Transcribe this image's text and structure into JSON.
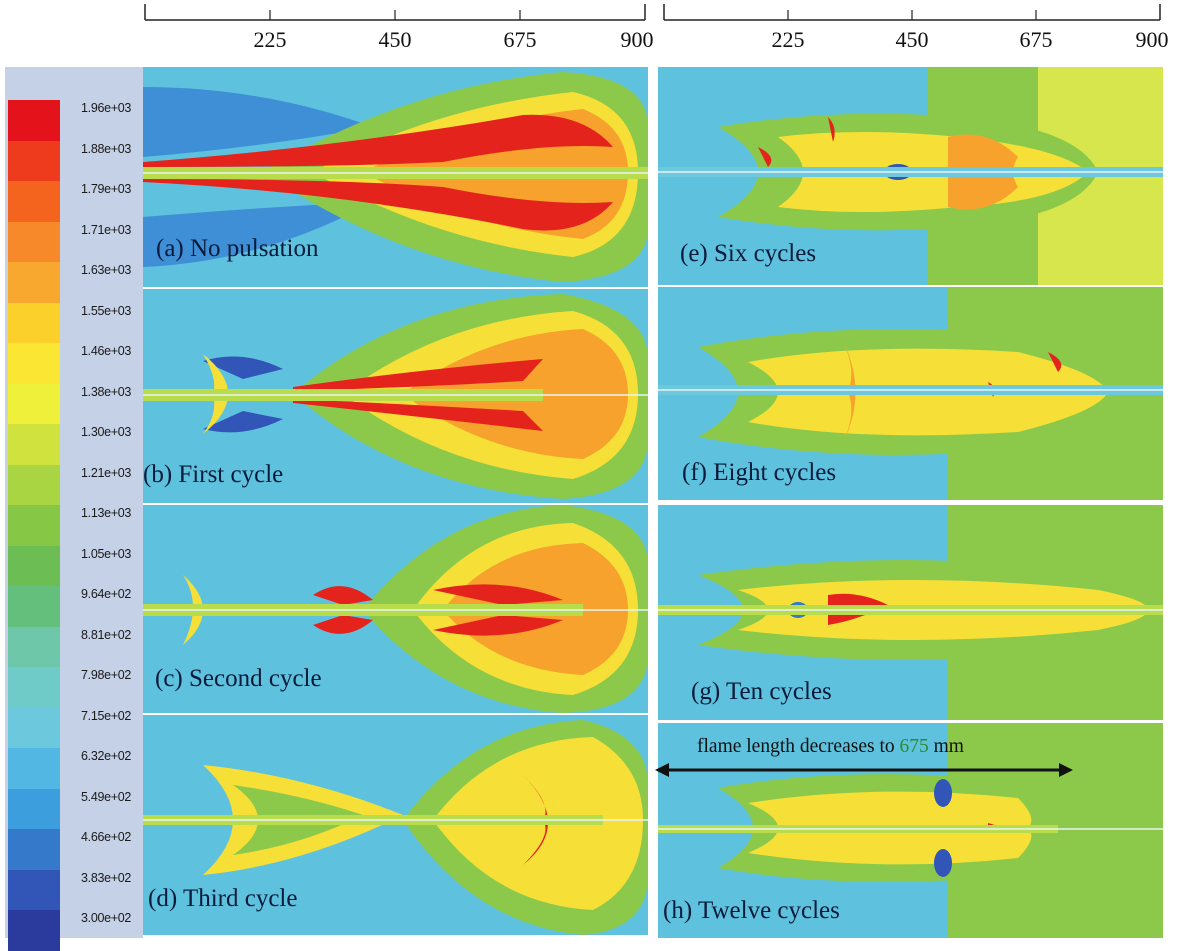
{
  "axis": {
    "left_ticks": [
      "225",
      "450",
      "675",
      "900"
    ],
    "right_ticks": [
      "225",
      "450",
      "675",
      "900"
    ]
  },
  "colorbar": {
    "labels": [
      "1.96e+03",
      "1.88e+03",
      "1.79e+03",
      "1.71e+03",
      "1.63e+03",
      "1.55e+03",
      "1.46e+03",
      "1.38e+03",
      "1.30e+03",
      "1.21e+03",
      "1.13e+03",
      "1.05e+03",
      "9.64e+02",
      "8.81e+02",
      "7.98e+02",
      "7.15e+02",
      "6.32e+02",
      "5.49e+02",
      "4.66e+02",
      "3.83e+02",
      "3.00e+02"
    ],
    "colors": [
      "#e3121b",
      "#ee3b1e",
      "#f4641f",
      "#f7892a",
      "#f9a82f",
      "#fbd02a",
      "#fbe634",
      "#eef03a",
      "#cfe23e",
      "#aad543",
      "#86c846",
      "#6cbd54",
      "#64bf7d",
      "#6fc7a9",
      "#6fcbc8",
      "#6cc8dd",
      "#52b8e3",
      "#3d9edd",
      "#3579cb",
      "#3156b8",
      "#2b3a9d"
    ]
  },
  "panels": [
    {
      "label": "(a)  No pulsation"
    },
    {
      "label": "(b) First cycle"
    },
    {
      "label": "(c) Second cycle"
    },
    {
      "label": "(d) Third cycle"
    },
    {
      "label": "(e) Six cycles"
    },
    {
      "label": "(f) Eight cycles"
    },
    {
      "label": "(g) Ten cycles"
    },
    {
      "label": "(h) Twelve cycles"
    }
  ],
  "annotation": {
    "text_before": "flame length decreases to ",
    "value": "675",
    "text_after": " mm",
    "value_color": "#2e8b2e"
  }
}
